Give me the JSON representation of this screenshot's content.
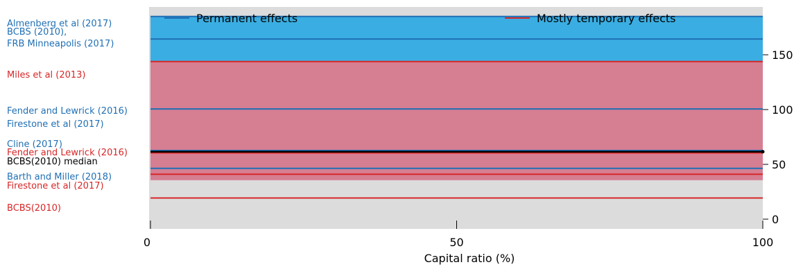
{
  "chart_data": {
    "type": "area",
    "title": "",
    "xlabel": "Capital ratio (%)",
    "ylabel": "",
    "xlim": [
      0,
      100
    ],
    "ylim": [
      0,
      180
    ],
    "x_ticks": [
      0,
      50,
      100
    ],
    "y_ticks": [
      0,
      50,
      100,
      150
    ],
    "grid": false,
    "legend_position": "top",
    "colors": {
      "permanent": "#1f6fb4",
      "temporary": "#d62728",
      "median": "#000000",
      "plot_bg": "#dcdcdc",
      "band_permanent": "#3aaee2",
      "band_temporary": "#d67e92"
    },
    "series": [
      {
        "name": "Permanent effects",
        "kind": "legend"
      },
      {
        "name": "Mostly temporary effects",
        "kind": "legend"
      }
    ],
    "bands": [
      {
        "name": "Permanent effects",
        "from": 134,
        "to": 172
      },
      {
        "name": "Mostly temporary effects",
        "from": 34,
        "to": 134
      }
    ],
    "lines": [
      {
        "label": "Almenberg et al (2017)",
        "group": "permanent",
        "value": 172
      },
      {
        "label": "BCBS (2010),\nFRB Minneapolis (2017)",
        "group": "permanent",
        "value": 153
      },
      {
        "label": "Miles et al (2013)",
        "group": "temporary",
        "value": 134
      },
      {
        "label": "Fender and Lewrick (2016)",
        "group": "permanent",
        "value": 94
      },
      {
        "label": "Firestone et al (2017)",
        "group": "permanent",
        "value": 94
      },
      {
        "label": "Cline (2017)",
        "group": "permanent",
        "value": 59
      },
      {
        "label": "Fender and Lewrick (2016)",
        "group": "temporary",
        "value": 57
      },
      {
        "label": "BCBS(2010) median",
        "group": "median",
        "value": 58
      },
      {
        "label": "Barth and Miller (2018)",
        "group": "permanent",
        "value": 44
      },
      {
        "label": "Firestone et al (2017)",
        "group": "temporary",
        "value": 39
      },
      {
        "label": "BCBS(2010)",
        "group": "temporary",
        "value": 19
      }
    ]
  }
}
